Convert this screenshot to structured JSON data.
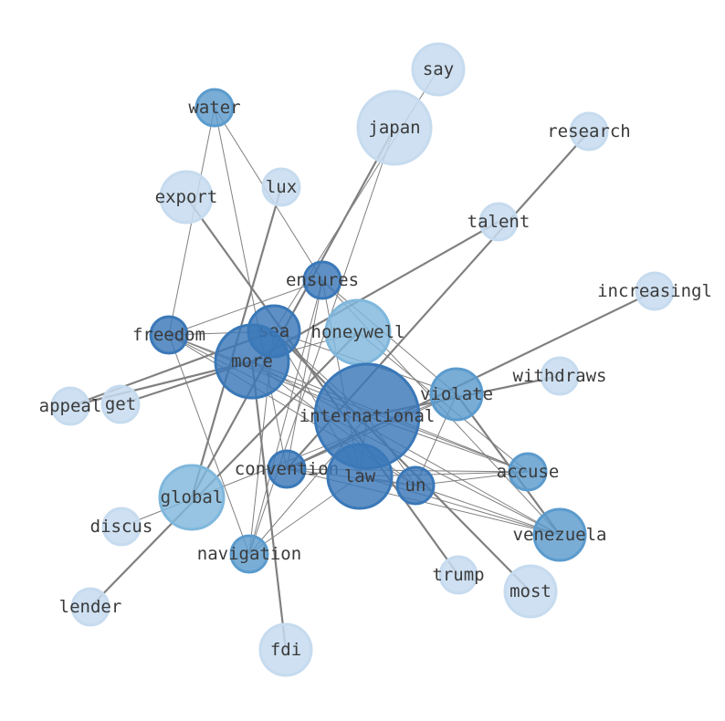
{
  "nodes": [
    {
      "label": "say",
      "tier": "light"
    },
    {
      "label": "japan",
      "tier": "light"
    },
    {
      "label": "research",
      "tier": "light"
    },
    {
      "label": "water",
      "tier": "medium"
    },
    {
      "label": "lux",
      "tier": "light"
    },
    {
      "label": "export",
      "tier": "light"
    },
    {
      "label": "talent",
      "tier": "light"
    },
    {
      "label": "ensures",
      "tier": "dark"
    },
    {
      "label": "increasingl",
      "tier": "light"
    },
    {
      "label": "freedom",
      "tier": "dark"
    },
    {
      "label": "sea",
      "tier": "dark"
    },
    {
      "label": "honeywell",
      "tier": "mediumlight"
    },
    {
      "label": "more",
      "tier": "dark"
    },
    {
      "label": "withdraws",
      "tier": "light"
    },
    {
      "label": "appeal",
      "tier": "light"
    },
    {
      "label": "get",
      "tier": "light"
    },
    {
      "label": "violate",
      "tier": "medium"
    },
    {
      "label": "international",
      "tier": "dark"
    },
    {
      "label": "convention",
      "tier": "dark"
    },
    {
      "label": "law",
      "tier": "dark"
    },
    {
      "label": "un",
      "tier": "dark"
    },
    {
      "label": "accuse",
      "tier": "medium"
    },
    {
      "label": "global",
      "tier": "mediumlight"
    },
    {
      "label": "discus",
      "tier": "light"
    },
    {
      "label": "venezuela",
      "tier": "medium"
    },
    {
      "label": "navigation",
      "tier": "medium"
    },
    {
      "label": "trump",
      "tier": "light"
    },
    {
      "label": "most",
      "tier": "light"
    },
    {
      "label": "lender",
      "tier": "light"
    },
    {
      "label": "fdi",
      "tier": "light"
    }
  ],
  "edges": [
    [
      "japan",
      "global",
      2
    ],
    [
      "research",
      "convention",
      2
    ],
    [
      "talent",
      "more",
      2
    ],
    [
      "increasingl",
      "convention",
      2
    ],
    [
      "withdraws",
      "international",
      2
    ],
    [
      "export",
      "trump",
      2
    ],
    [
      "lux",
      "global",
      2
    ],
    [
      "fdi",
      "more",
      2
    ],
    [
      "lender",
      "honeywell",
      2
    ],
    [
      "most",
      "sea",
      2
    ],
    [
      "venezuela",
      "violate",
      2
    ],
    [
      "appeal",
      "more",
      2
    ],
    [
      "get",
      "more",
      2
    ],
    [
      "appeal",
      "sea",
      2
    ],
    [
      "say",
      "sea",
      1
    ],
    [
      "japan",
      "navigation",
      1
    ],
    [
      "water",
      "freedom",
      1
    ],
    [
      "water",
      "ensures",
      1
    ],
    [
      "water",
      "convention",
      1
    ],
    [
      "ensures",
      "freedom",
      1
    ],
    [
      "ensures",
      "navigation",
      1
    ],
    [
      "ensures",
      "law",
      1
    ],
    [
      "ensures",
      "violate",
      1
    ],
    [
      "ensures",
      "venezuela",
      1
    ],
    [
      "ensures",
      "convention",
      1
    ],
    [
      "freedom",
      "sea",
      1
    ],
    [
      "freedom",
      "international",
      1
    ],
    [
      "freedom",
      "un",
      1
    ],
    [
      "freedom",
      "navigation",
      1
    ],
    [
      "freedom",
      "accuse",
      1
    ],
    [
      "freedom",
      "venezuela",
      1
    ],
    [
      "sea",
      "international",
      1
    ],
    [
      "sea",
      "violate",
      1
    ],
    [
      "sea",
      "law",
      1
    ],
    [
      "sea",
      "navigation",
      1
    ],
    [
      "more",
      "un",
      1
    ],
    [
      "more",
      "venezuela",
      1
    ],
    [
      "more",
      "accuse",
      1
    ],
    [
      "honeywell",
      "accuse",
      1
    ],
    [
      "honeywell",
      "more",
      1
    ],
    [
      "violate",
      "convention",
      1
    ],
    [
      "violate",
      "un",
      1
    ],
    [
      "violate",
      "venezuela",
      1
    ],
    [
      "international",
      "law",
      1
    ],
    [
      "international",
      "un",
      1
    ],
    [
      "international",
      "accuse",
      1
    ],
    [
      "convention",
      "un",
      1
    ],
    [
      "convention",
      "accuse",
      1
    ],
    [
      "convention",
      "venezuela",
      1
    ],
    [
      "law",
      "un",
      1
    ],
    [
      "law",
      "accuse",
      1
    ],
    [
      "law",
      "venezuela",
      1
    ],
    [
      "law",
      "navigation",
      1
    ],
    [
      "un",
      "accuse",
      1
    ],
    [
      "un",
      "venezuela",
      1
    ],
    [
      "discus",
      "violate",
      1
    ],
    [
      "navigation",
      "international",
      1
    ]
  ],
  "colors": {
    "light": "#c6dbef",
    "mediumlight": "#7fb7dc",
    "medium": "#5b9bcd",
    "dark": "#3a78b8",
    "edge": "#808080"
  }
}
